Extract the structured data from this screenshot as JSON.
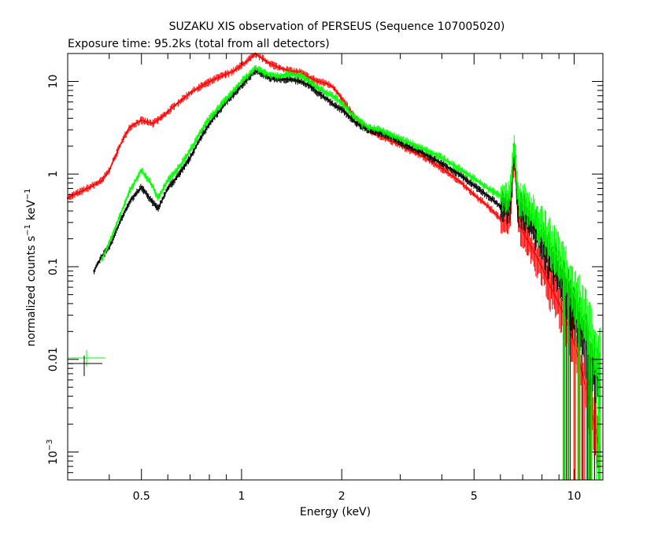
{
  "chart_data": {
    "type": "line",
    "title": "SUZAKU XIS observation of PERSEUS (Sequence 107005020)",
    "subtitle": "Exposure time: 95.2ks (total from all detectors)",
    "xlabel": "Energy (keV)",
    "ylabel": "normalized counts s",
    "ylabel_exp1": "−1",
    "ylabel_unit": "keV",
    "ylabel_exp2": "−1",
    "x_scale": "log",
    "y_scale": "log",
    "xlim": [
      0.3,
      12.2
    ],
    "ylim": [
      0.0005,
      20
    ],
    "x_ticks": [
      {
        "value": 0.5,
        "label": "0.5"
      },
      {
        "value": 1,
        "label": "1"
      },
      {
        "value": 2,
        "label": "2"
      },
      {
        "value": 5,
        "label": "5"
      },
      {
        "value": 10,
        "label": "10"
      }
    ],
    "y_ticks": [
      {
        "value": 0.001,
        "base": "10",
        "exp": "−3"
      },
      {
        "value": 0.01,
        "label": "0.01"
      },
      {
        "value": 0.1,
        "label": "0.1"
      },
      {
        "value": 1,
        "label": "1"
      },
      {
        "value": 10,
        "label": "10"
      }
    ],
    "grid": false,
    "legend": "none",
    "series": [
      {
        "color": "#ff0000",
        "x": [
          0.3,
          0.32,
          0.35,
          0.38,
          0.4,
          0.43,
          0.46,
          0.5,
          0.54,
          0.58,
          0.63,
          0.7,
          0.78,
          0.85,
          0.95,
          1.05,
          1.1,
          1.2,
          1.3,
          1.4,
          1.5,
          1.6,
          1.7,
          1.8,
          1.9,
          2.0,
          2.2,
          2.4,
          2.6,
          2.8,
          3.0,
          3.5,
          4.0,
          4.5,
          5.0,
          5.5,
          6.0,
          6.4,
          6.6,
          6.8,
          7.2,
          7.8,
          8.5,
          9.0,
          9.5,
          10.0,
          10.5,
          11.0,
          11.5,
          12.0
        ],
        "y": [
          0.55,
          0.62,
          0.72,
          0.85,
          1.1,
          2.0,
          3.2,
          3.8,
          3.5,
          4.2,
          5.5,
          7.5,
          9.5,
          11,
          13,
          17,
          20,
          16,
          14,
          13,
          12.5,
          11,
          10,
          9.5,
          8.5,
          6.5,
          4.0,
          3.0,
          2.6,
          2.3,
          2.05,
          1.55,
          1.15,
          0.85,
          0.6,
          0.45,
          0.33,
          0.3,
          1.6,
          0.3,
          0.2,
          0.12,
          0.06,
          0.04,
          0.025,
          0.015,
          0.008,
          0.004,
          0.002,
          0.001
        ]
      },
      {
        "color": "#000000",
        "x": [
          0.36,
          0.38,
          0.4,
          0.43,
          0.46,
          0.5,
          0.54,
          0.56,
          0.6,
          0.65,
          0.7,
          0.75,
          0.8,
          0.9,
          1.0,
          1.1,
          1.2,
          1.3,
          1.4,
          1.5,
          1.6,
          1.7,
          1.8,
          1.9,
          2.0,
          2.2,
          2.4,
          2.6,
          2.8,
          3.0,
          3.5,
          4.0,
          4.5,
          5.0,
          5.5,
          6.0,
          6.4,
          6.6,
          6.8,
          7.2,
          7.8,
          8.5,
          9.0,
          9.5,
          10.0,
          10.5,
          11.0,
          11.5,
          12.0
        ],
        "y": [
          0.09,
          0.13,
          0.16,
          0.3,
          0.5,
          0.72,
          0.5,
          0.42,
          0.7,
          1.0,
          1.5,
          2.4,
          3.5,
          6.0,
          9.0,
          13,
          11,
          10.5,
          10.5,
          10,
          9.0,
          7.5,
          6.5,
          5.5,
          5.0,
          3.6,
          3.0,
          2.8,
          2.5,
          2.2,
          1.7,
          1.3,
          1.0,
          0.75,
          0.58,
          0.45,
          0.42,
          1.8,
          0.42,
          0.35,
          0.22,
          0.12,
          0.08,
          0.05,
          0.03,
          0.02,
          0.012,
          0.008,
          0.005
        ]
      },
      {
        "color": "#00ff00",
        "x": [
          0.38,
          0.4,
          0.43,
          0.46,
          0.5,
          0.54,
          0.56,
          0.6,
          0.65,
          0.7,
          0.75,
          0.8,
          0.9,
          1.0,
          1.1,
          1.2,
          1.3,
          1.4,
          1.5,
          1.6,
          1.7,
          1.8,
          1.9,
          2.0,
          2.2,
          2.4,
          2.6,
          2.8,
          3.0,
          3.5,
          4.0,
          4.5,
          5.0,
          5.5,
          6.0,
          6.4,
          6.6,
          6.8,
          7.2,
          7.8,
          8.5,
          9.0,
          9.5,
          10.0,
          10.5,
          11.0,
          11.5,
          12.0
        ],
        "y": [
          0.12,
          0.18,
          0.35,
          0.65,
          1.1,
          0.75,
          0.55,
          0.85,
          1.2,
          1.8,
          2.8,
          4.0,
          6.5,
          10,
          14,
          12,
          11.5,
          12,
          11.5,
          10,
          8.5,
          7.5,
          6.8,
          5.8,
          4.0,
          3.2,
          3.0,
          2.7,
          2.4,
          1.9,
          1.5,
          1.15,
          0.9,
          0.7,
          0.58,
          0.55,
          2.0,
          0.55,
          0.45,
          0.3,
          0.18,
          0.12,
          0.08,
          0.05,
          0.035,
          0.022,
          0.014,
          0.009
        ]
      }
    ]
  }
}
